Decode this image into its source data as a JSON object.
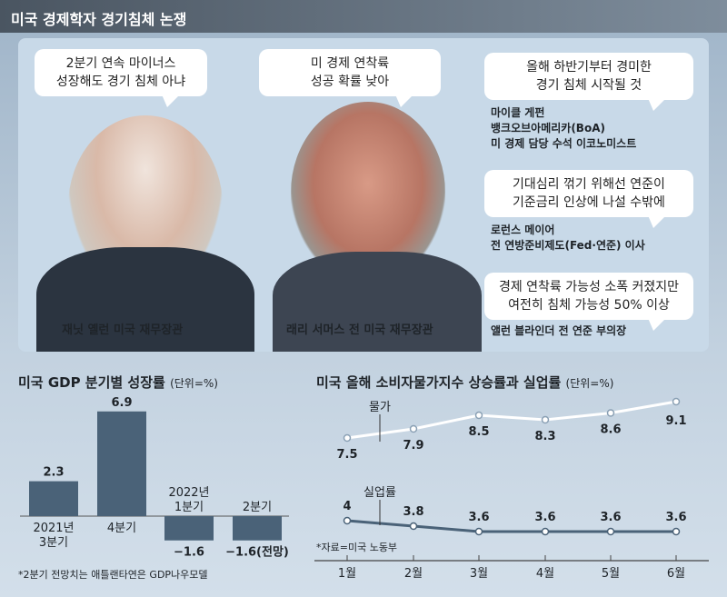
{
  "title": "미국 경제학자 경기침체 논쟁",
  "quotes": [
    {
      "text": [
        "2분기 연속 마이너스",
        "성장해도 경기 침체 아냐"
      ],
      "speaker": "재닛 옐런 미국 재무장관"
    },
    {
      "text": [
        "미 경제 연착륙",
        "성공 확률 낮아"
      ],
      "speaker": "래리 서머스 전 미국 재무장관"
    },
    {
      "text": [
        "올해 하반기부터 경미한",
        "경기 침체 시작될 것"
      ],
      "speaker": [
        "마이클 게펀",
        "뱅크오브아메리카(BoA)",
        "미 경제 담당 수석 이코노미스트"
      ]
    },
    {
      "text": [
        "기대심리 꺾기 위해선 연준이",
        "기준금리 인상에 나설 수밖에"
      ],
      "speaker": [
        "로런스 메이어",
        "전 연방준비제도(Fed·연준) 이사"
      ]
    },
    {
      "text": [
        "경제 연착륙 가능성 소폭 커졌지만",
        "여전히 침체 가능성 50% 이상"
      ],
      "speaker": [
        "앨런 블라인더 전 연준 부의장"
      ]
    }
  ],
  "chart_data": [
    {
      "type": "bar",
      "title": "미국 GDP 분기별 성장률",
      "unit": "(단위=%)",
      "categories": [
        [
          "2021년",
          "3분기"
        ],
        [
          "4분기"
        ],
        [
          "2022년",
          "1분기"
        ],
        [
          "2분기"
        ]
      ],
      "values": [
        2.3,
        6.9,
        -1.6,
        -1.6
      ],
      "value_labels": [
        "2.3",
        "6.9",
        "−1.6",
        "−1.6(전망)"
      ],
      "note": "*2분기 전망치는 애틀랜타연은 GDP나우모델",
      "color": "#4a6278"
    },
    {
      "type": "line",
      "title": "미국 올해 소비자물가지수 상승률과 실업률",
      "unit": "(단위=%)",
      "categories": [
        "1월",
        "2월",
        "3월",
        "4월",
        "5월",
        "6월"
      ],
      "series": [
        {
          "name": "물가",
          "values": [
            7.5,
            7.9,
            8.5,
            8.3,
            8.6,
            9.1
          ],
          "labels": [
            "7.5",
            "7.9",
            "8.5",
            "8.3",
            "8.6",
            "9.1"
          ],
          "color": "#ffffff"
        },
        {
          "name": "실업률",
          "values": [
            4,
            3.8,
            3.6,
            3.6,
            3.6,
            3.6
          ],
          "labels": [
            "4",
            "3.8",
            "3.6",
            "3.6",
            "3.6",
            "3.6"
          ],
          "color": "#4a6278"
        }
      ],
      "source": "*자료=미국 노동부"
    }
  ]
}
